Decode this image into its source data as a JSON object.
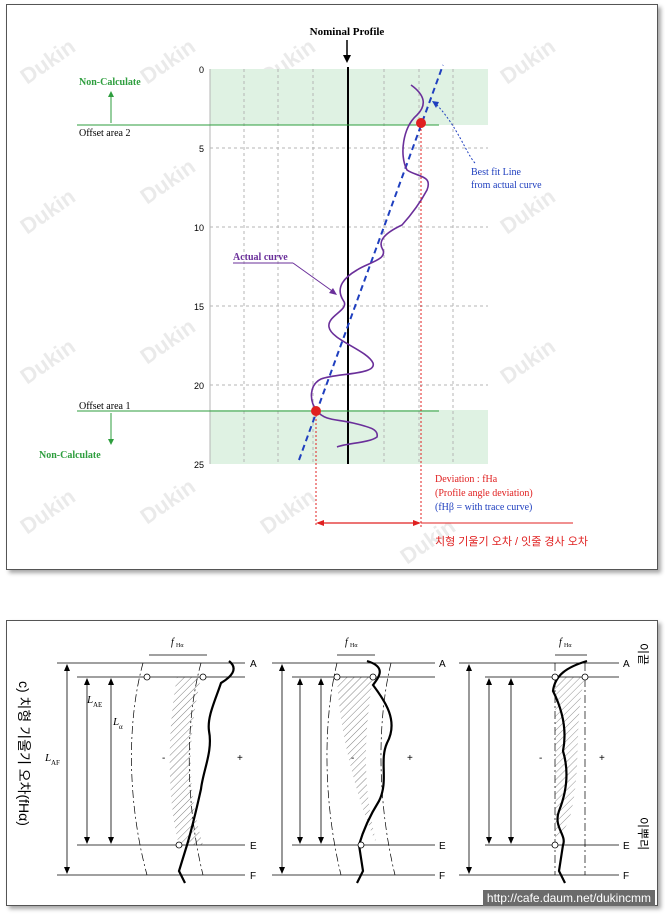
{
  "top": {
    "nominal_profile": "Nominal Profile",
    "non_calculate_top": "Non-Calculate",
    "non_calculate_bottom": "Non-Calculate",
    "offset_area_2": "Offset area 2",
    "offset_area_1": "Offset area 1",
    "best_fit_line": [
      "Best fit Line",
      "from actual curve"
    ],
    "actual_curve": "Actual curve",
    "deviation_lines": [
      "Deviation :    fHa",
      "(Profile angle deviation)",
      "(fHβ = with trace curve)"
    ],
    "korean_caption": "치형 기울기 오차 / 잇줄 경사 오차",
    "y_ticks": [
      "0",
      "5",
      "10",
      "15",
      "20",
      "25"
    ],
    "colors": {
      "green": "#2e9e3e",
      "blue": "#1f3fbf",
      "purple": "#6a2f9a",
      "red": "#e02020",
      "band": "#dff2e3"
    }
  },
  "bottom": {
    "side_caption": "c) 치형 기울기 오차(fHα)",
    "tip_label": "이끝",
    "root_label": "이뿌리",
    "f_label": "f",
    "f_sub": "Hα",
    "labels": {
      "A": "A",
      "E": "E",
      "F": "F",
      "LAF": "L",
      "LAF_sub": "AF",
      "LAE": "L",
      "LAE_sub": "AE",
      "La": "L",
      "La_sub": "α"
    },
    "minus": "-",
    "plus": "+"
  },
  "watermark": "Dukin",
  "url": "http://cafe.daum.net/dukincmm"
}
